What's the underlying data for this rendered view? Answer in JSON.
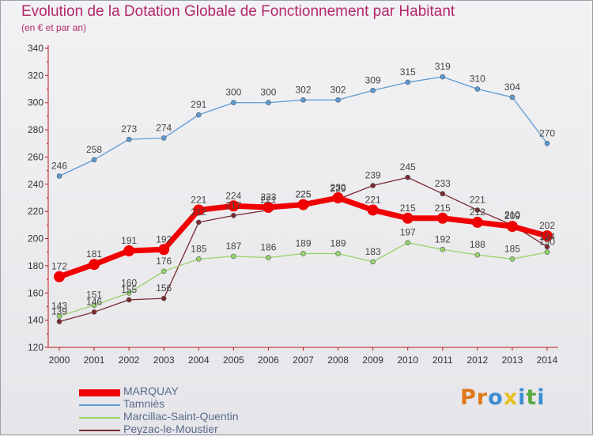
{
  "title": "Evolution de la Dotation Globale de Fonctionnement par Habitant",
  "subtitle": "(en € et par an)",
  "chart_data": {
    "type": "line",
    "title": "Evolution de la Dotation Globale de Fonctionnement par Habitant",
    "subtitle": "(en € et par an)",
    "x": [
      2000,
      2001,
      2002,
      2003,
      2004,
      2005,
      2006,
      2007,
      2008,
      2009,
      2010,
      2011,
      2012,
      2013,
      2014
    ],
    "ylim": [
      120,
      340
    ],
    "yticks": [
      120,
      140,
      160,
      180,
      200,
      220,
      240,
      260,
      280,
      300,
      320,
      340
    ],
    "grid": false,
    "legend": "bottom-left",
    "series": [
      {
        "name": "Tamniès",
        "color": "#5b9bd5",
        "values": [
          246,
          258,
          273,
          274,
          291,
          300,
          300,
          302,
          302,
          309,
          315,
          319,
          310,
          304,
          270
        ]
      },
      {
        "name": "Peyzac-le-Moustier",
        "color": "#7a2a30",
        "values": [
          139,
          146,
          155,
          156,
          212,
          217,
          221,
          225,
          229,
          239,
          245,
          233,
          221,
          210,
          194
        ]
      },
      {
        "name": "Marcillac-Saint-Quentin",
        "color": "#96d46a",
        "values": [
          143,
          151,
          160,
          176,
          185,
          187,
          186,
          189,
          189,
          183,
          197,
          192,
          188,
          185,
          190
        ]
      },
      {
        "name": "MARQUAY",
        "color": "#f00000",
        "values": [
          172,
          181,
          191,
          192,
          221,
          224,
          223,
          225,
          230,
          221,
          215,
          215,
          212,
          209,
          202
        ]
      }
    ]
  },
  "legend": [
    {
      "name": "MARQUAY",
      "color": "#f00000"
    },
    {
      "name": "Tamniès",
      "color": "#5b9bd5"
    },
    {
      "name": "Marcillac-Saint-Quentin",
      "color": "#96d46a"
    },
    {
      "name": "Peyzac-le-Moustier",
      "color": "#7a2a30"
    }
  ],
  "logo": {
    "letters": [
      "P",
      "r",
      "o",
      "x",
      "i",
      "t",
      "i"
    ],
    "colors": [
      "#e07818",
      "#e07818",
      "#3c8cd0",
      "#e8c020",
      "#3c8cd0",
      "#5aaa40",
      "#3c8cd0"
    ]
  }
}
